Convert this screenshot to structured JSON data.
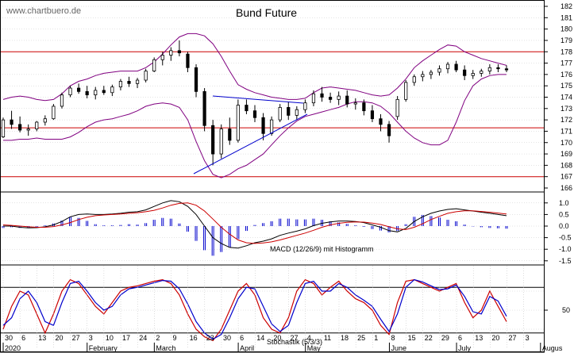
{
  "watermark": "www.chartbuero.de",
  "chart_data": [
    {
      "type": "candlestick",
      "title": "Bund Future",
      "ylim": [
        166,
        182.5
      ],
      "y_ticks": [
        "182",
        "181",
        "180",
        "179",
        "178",
        "177",
        "176",
        "175",
        "174",
        "173",
        "172",
        "171",
        "170",
        "169",
        "168",
        "167",
        "166"
      ],
      "horizontal_lines": [
        178,
        171.3,
        167
      ],
      "upper_band": [
        173.8,
        174.0,
        174.1,
        174.0,
        173.8,
        173.7,
        173.8,
        174.3,
        175.0,
        175.4,
        175.6,
        175.9,
        176.1,
        176.2,
        176.3,
        176.3,
        176.3,
        176.6,
        177.1,
        177.8,
        178.6,
        179.3,
        179.6,
        179.6,
        179.4,
        178.7,
        177.6,
        176.3,
        175.1,
        174.7,
        174.4,
        174.2,
        174.0,
        173.9,
        173.8,
        173.8,
        173.9,
        174.4,
        174.8,
        174.9,
        174.8,
        174.7,
        174.6,
        174.4,
        174.2,
        174.1,
        174.2,
        174.8,
        175.6,
        176.6,
        177.2,
        177.7,
        178.2,
        178.6,
        178.5,
        178.0,
        177.7,
        177.4,
        177.2,
        177.0,
        176.8
      ],
      "lower_band": [
        170.2,
        170.2,
        170.3,
        170.3,
        170.4,
        170.3,
        170.3,
        170.3,
        170.5,
        170.9,
        171.4,
        171.8,
        172.0,
        172.1,
        172.3,
        172.5,
        172.8,
        173.2,
        173.4,
        173.5,
        173.4,
        173.1,
        172.0,
        170.1,
        168.4,
        167.2,
        166.9,
        167.2,
        167.7,
        168.0,
        168.5,
        169.0,
        169.8,
        170.6,
        171.3,
        171.9,
        172.3,
        172.5,
        172.7,
        172.9,
        173.1,
        173.4,
        173.6,
        173.6,
        173.5,
        173.2,
        172.6,
        171.8,
        171.0,
        170.4,
        170.0,
        169.8,
        169.8,
        170.2,
        171.8,
        173.7,
        175.0,
        175.6,
        175.9,
        176.0,
        176.0
      ],
      "candles": [
        [
          170.5,
          172.2,
          170.4,
          172.0
        ],
        [
          172.0,
          172.8,
          171.2,
          171.6
        ],
        [
          171.6,
          172.3,
          170.9,
          171.1
        ],
        [
          171.1,
          171.6,
          170.6,
          171.2
        ],
        [
          171.2,
          171.9,
          171.0,
          171.8
        ],
        [
          171.8,
          172.4,
          171.5,
          172.1
        ],
        [
          172.1,
          173.4,
          172.0,
          173.2
        ],
        [
          173.2,
          174.4,
          173.0,
          174.2
        ],
        [
          174.2,
          175.0,
          174.0,
          174.8
        ],
        [
          174.8,
          175.2,
          174.3,
          174.5
        ],
        [
          174.5,
          175.0,
          173.9,
          174.2
        ],
        [
          174.2,
          174.9,
          173.8,
          174.6
        ],
        [
          174.6,
          175.0,
          174.2,
          174.4
        ],
        [
          174.4,
          175.1,
          174.1,
          174.9
        ],
        [
          174.9,
          175.6,
          174.6,
          175.4
        ],
        [
          175.4,
          175.8,
          174.9,
          175.2
        ],
        [
          175.2,
          175.7,
          174.8,
          175.5
        ],
        [
          175.5,
          176.5,
          175.3,
          176.3
        ],
        [
          176.3,
          177.5,
          176.2,
          177.3
        ],
        [
          177.3,
          178.0,
          176.8,
          177.7
        ],
        [
          177.7,
          178.4,
          177.2,
          178.1
        ],
        [
          178.1,
          179.0,
          177.6,
          177.9
        ],
        [
          177.8,
          178.0,
          176.2,
          176.6
        ],
        [
          176.6,
          176.9,
          174.0,
          174.5
        ],
        [
          174.5,
          174.8,
          171.0,
          171.5
        ],
        [
          171.5,
          172.0,
          168.0,
          169.0
        ],
        [
          169.0,
          171.6,
          168.6,
          171.2
        ],
        [
          171.2,
          172.2,
          169.8,
          170.2
        ],
        [
          170.2,
          173.8,
          170.0,
          173.3
        ],
        [
          173.3,
          173.8,
          172.5,
          172.8
        ],
        [
          172.8,
          173.3,
          171.8,
          172.2
        ],
        [
          172.2,
          172.6,
          170.2,
          170.8
        ],
        [
          170.8,
          172.3,
          170.6,
          172.0
        ],
        [
          172.0,
          173.4,
          171.8,
          173.1
        ],
        [
          173.1,
          173.6,
          172.0,
          172.4
        ],
        [
          172.4,
          173.2,
          172.0,
          172.9
        ],
        [
          172.9,
          173.8,
          172.6,
          173.5
        ],
        [
          173.5,
          174.6,
          173.2,
          174.3
        ],
        [
          174.3,
          174.9,
          173.6,
          174.0
        ],
        [
          174.0,
          174.4,
          173.5,
          173.8
        ],
        [
          173.8,
          174.5,
          173.3,
          174.1
        ],
        [
          174.1,
          174.6,
          173.1,
          173.4
        ],
        [
          173.4,
          173.9,
          172.9,
          173.5
        ],
        [
          173.5,
          173.8,
          172.4,
          172.8
        ],
        [
          172.8,
          173.3,
          171.8,
          172.1
        ],
        [
          172.1,
          172.5,
          171.0,
          171.6
        ],
        [
          171.6,
          171.9,
          170.0,
          170.6
        ],
        [
          172.3,
          174.1,
          172.0,
          173.8
        ],
        [
          173.8,
          175.5,
          173.6,
          175.3
        ],
        [
          175.3,
          176.0,
          175.0,
          175.8
        ],
        [
          175.8,
          176.3,
          175.4,
          176.0
        ],
        [
          176.0,
          176.4,
          175.6,
          176.2
        ],
        [
          176.2,
          176.8,
          175.9,
          176.5
        ],
        [
          176.5,
          177.1,
          176.1,
          176.9
        ],
        [
          176.9,
          177.2,
          176.2,
          176.4
        ],
        [
          176.4,
          176.8,
          175.5,
          175.9
        ],
        [
          175.9,
          176.4,
          175.6,
          176.1
        ],
        [
          176.1,
          176.5,
          175.8,
          176.3
        ],
        [
          176.3,
          176.9,
          176.0,
          176.6
        ],
        [
          176.6,
          176.9,
          176.2,
          176.5
        ],
        [
          176.5,
          176.8,
          176.2,
          176.4
        ]
      ]
    },
    {
      "type": "line",
      "label": "MACD (12/26/9) mit Histogramm",
      "ylim": [
        -1.6,
        1.6
      ],
      "y_ticks": [
        "1.0",
        "0.5",
        "0.0",
        "-0.5",
        "-1.0",
        "-1.5"
      ],
      "series": [
        {
          "values": [
            0.0,
            0.0,
            -0.05,
            -0.08,
            -0.07,
            -0.03,
            0.05,
            0.2,
            0.4,
            0.5,
            0.52,
            0.5,
            0.5,
            0.52,
            0.55,
            0.6,
            0.62,
            0.7,
            0.85,
            1.0,
            1.1,
            1.05,
            0.85,
            0.5,
            0.0,
            -0.5,
            -0.75,
            -0.92,
            -0.95,
            -0.85,
            -0.72,
            -0.65,
            -0.55,
            -0.4,
            -0.3,
            -0.22,
            -0.12,
            0.02,
            0.12,
            0.18,
            0.22,
            0.22,
            0.2,
            0.15,
            0.05,
            -0.05,
            -0.2,
            -0.25,
            -0.1,
            0.2,
            0.4,
            0.55,
            0.65,
            0.72,
            0.75,
            0.7,
            0.65,
            0.6,
            0.55,
            0.5,
            0.45
          ]
        },
        {
          "values": [
            0.05,
            0.03,
            0.0,
            -0.03,
            -0.05,
            -0.05,
            -0.02,
            0.05,
            0.15,
            0.28,
            0.38,
            0.45,
            0.48,
            0.5,
            0.52,
            0.55,
            0.58,
            0.62,
            0.68,
            0.78,
            0.9,
            0.98,
            1.0,
            0.9,
            0.65,
            0.3,
            -0.05,
            -0.35,
            -0.6,
            -0.72,
            -0.75,
            -0.73,
            -0.68,
            -0.6,
            -0.5,
            -0.4,
            -0.3,
            -0.18,
            -0.05,
            0.05,
            0.12,
            0.16,
            0.18,
            0.17,
            0.13,
            0.07,
            -0.03,
            -0.12,
            -0.15,
            -0.05,
            0.1,
            0.28,
            0.42,
            0.55,
            0.62,
            0.66,
            0.66,
            0.63,
            0.6,
            0.56,
            0.52
          ]
        }
      ]
    },
    {
      "type": "line",
      "label": "Stochastik (5/3/3)",
      "ylim": [
        0,
        100
      ],
      "y_ticks": [
        "50"
      ],
      "horizontal_lines": [
        80,
        20
      ],
      "series": [
        {
          "values": [
            25,
            55,
            75,
            70,
            45,
            20,
            45,
            75,
            90,
            85,
            70,
            55,
            45,
            60,
            75,
            80,
            82,
            85,
            88,
            90,
            85,
            70,
            45,
            25,
            15,
            10,
            25,
            50,
            75,
            85,
            70,
            40,
            25,
            20,
            40,
            75,
            90,
            85,
            70,
            80,
            88,
            75,
            65,
            60,
            50,
            30,
            18,
            60,
            88,
            90,
            85,
            80,
            75,
            80,
            85,
            60,
            40,
            50,
            75,
            55,
            35
          ]
        },
        {
          "values": [
            30,
            40,
            65,
            75,
            60,
            35,
            30,
            60,
            85,
            88,
            75,
            60,
            50,
            55,
            70,
            78,
            80,
            83,
            86,
            89,
            88,
            78,
            58,
            35,
            20,
            12,
            18,
            40,
            65,
            80,
            78,
            55,
            32,
            22,
            30,
            60,
            85,
            88,
            75,
            75,
            85,
            80,
            70,
            63,
            55,
            38,
            22,
            45,
            80,
            90,
            87,
            82,
            77,
            78,
            83,
            68,
            48,
            45,
            68,
            62,
            42
          ]
        }
      ]
    },
    {
      "type": "axis",
      "x_tick_labels": [
        "30",
        "6",
        "13",
        "20",
        "27",
        "3",
        "10",
        "17",
        "24",
        "2",
        "9",
        "16",
        "23",
        "30",
        "6",
        "14",
        "20",
        "27",
        "4",
        "11",
        "18",
        "25",
        "1",
        "8",
        "15",
        "22",
        "29",
        "6",
        "13",
        "20",
        "27",
        "3"
      ],
      "month_labels": [
        "2020",
        "February",
        "March",
        "April",
        "May",
        "June",
        "July",
        "Augus"
      ]
    }
  ]
}
